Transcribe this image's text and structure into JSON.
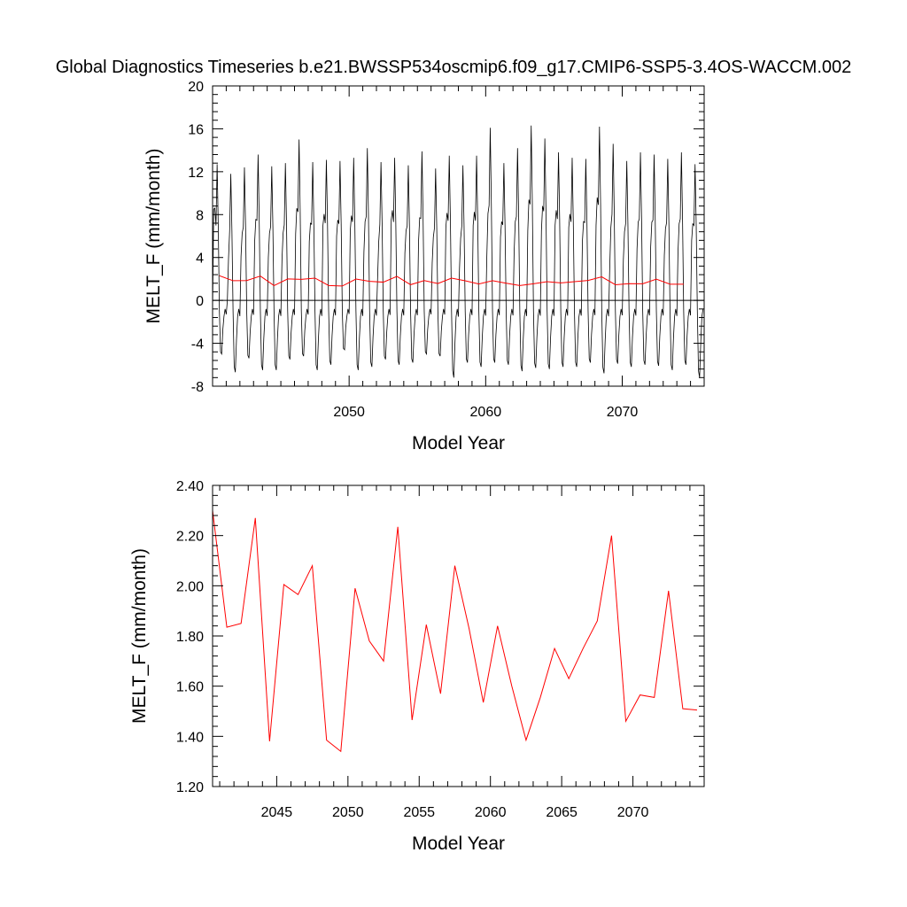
{
  "figure": {
    "title": "Global Diagnostics Timeseries b.e21.BWSSP534oscmip6.f09_g17.CMIP6-SSP5-3.4OS-WACCM.002"
  },
  "colors": {
    "monthly_line": "#000000",
    "annual_line": "#ff0000",
    "zero_line": "#000000",
    "frame": "#000000"
  },
  "chart_data": [
    {
      "type": "line",
      "xlabel": "Model Year",
      "ylabel": "MELT_F (mm/month)",
      "xlim": [
        2040,
        2076
      ],
      "ylim": [
        -8,
        20
      ],
      "xticks": [
        2050,
        2060,
        2070
      ],
      "xtick_labels": [
        "2050",
        "2060",
        "2070"
      ],
      "yticks": [
        -8,
        -4,
        0,
        4,
        8,
        12,
        16,
        20
      ],
      "ytick_labels": [
        "-8",
        "-4",
        "0",
        "4",
        "8",
        "12",
        "16",
        "20"
      ],
      "zero_line": true,
      "grid": false,
      "series": [
        {
          "style": "monthly",
          "color": "#000000",
          "x_start": 2040,
          "step": 0.0833333,
          "peaks": [
            12.7,
            11.8,
            12.4,
            13.6,
            12.5,
            12.8,
            15.0,
            12.9,
            13.1,
            13.0,
            13.3,
            14.2,
            12.9,
            13.3,
            12.6,
            13.9,
            12.3,
            13.5,
            12.6,
            13.5,
            16.1,
            12.8,
            14.2,
            16.3,
            15.1,
            13.8,
            13.3,
            13.2,
            16.2,
            14.6,
            13.0,
            13.8,
            13.6,
            13.2,
            13.8,
            12.7
          ],
          "secondary_peaks": [
            8.5,
            0.0,
            4.1,
            5.5,
            4.0,
            3.8,
            6.2,
            5.5,
            7.0,
            6.0,
            6.5,
            4.5,
            2.0,
            7.5,
            4.4,
            5.5,
            3.5,
            6.8,
            3.0,
            7.0,
            4.1,
            5.9,
            4.5,
            6.5,
            6.5,
            7.0,
            6.8,
            5.5,
            7.0,
            3.0,
            3.8,
            4.8,
            5.0,
            4.2,
            4.5,
            5.6
          ],
          "troughs": [
            -5.0,
            -6.7,
            -5.4,
            -6.5,
            -6.5,
            -5.5,
            -5.2,
            -6.5,
            -6.0,
            -4.6,
            -6.5,
            -6.2,
            -5.5,
            -6.0,
            -5.8,
            -5.0,
            -5.2,
            -7.2,
            -5.8,
            -6.2,
            -5.8,
            -6.0,
            -6.6,
            -6.3,
            -6.4,
            -6.2,
            -6.2,
            -5.8,
            -6.8,
            -5.9,
            -6.2,
            -6.0,
            -6.1,
            -6.5,
            -6.0,
            -7.2
          ]
        },
        {
          "style": "annual",
          "color": "#ff0000",
          "x": [
            2040.5,
            2041.5,
            2042.5,
            2043.5,
            2044.5,
            2045.5,
            2046.5,
            2047.5,
            2048.5,
            2049.5,
            2050.5,
            2051.5,
            2052.5,
            2053.5,
            2054.5,
            2055.5,
            2056.5,
            2057.5,
            2058.5,
            2059.5,
            2060.5,
            2061.5,
            2062.5,
            2063.5,
            2064.5,
            2065.5,
            2066.5,
            2067.5,
            2068.5,
            2069.5,
            2070.5,
            2071.5,
            2072.5,
            2073.5,
            2074.5
          ],
          "values": [
            2.3,
            1.835,
            1.85,
            2.27,
            1.38,
            2.005,
            1.965,
            2.08,
            1.385,
            1.34,
            1.99,
            1.78,
            1.7,
            2.235,
            1.465,
            1.845,
            1.57,
            2.08,
            1.83,
            1.535,
            1.84,
            1.6,
            1.385,
            1.555,
            1.75,
            1.63,
            1.75,
            1.86,
            2.2,
            1.46,
            1.565,
            1.555,
            1.98,
            1.51,
            1.505
          ]
        }
      ]
    },
    {
      "type": "line",
      "xlabel": "Model Year",
      "ylabel": "MELT_F (mm/month)",
      "xlim": [
        2040.5,
        2075
      ],
      "ylim": [
        1.2,
        2.4
      ],
      "xticks": [
        2045,
        2050,
        2055,
        2060,
        2065,
        2070
      ],
      "xtick_labels": [
        "2045",
        "2050",
        "2055",
        "2060",
        "2065",
        "2070"
      ],
      "yticks": [
        1.2,
        1.4,
        1.6,
        1.8,
        2.0,
        2.2,
        2.4
      ],
      "ytick_labels": [
        "1.20",
        "1.40",
        "1.60",
        "1.80",
        "2.00",
        "2.20",
        "2.40"
      ],
      "grid": false,
      "series": [
        {
          "style": "annual",
          "color": "#ff0000",
          "x": [
            2040.5,
            2041.5,
            2042.5,
            2043.5,
            2044.5,
            2045.5,
            2046.5,
            2047.5,
            2048.5,
            2049.5,
            2050.5,
            2051.5,
            2052.5,
            2053.5,
            2054.5,
            2055.5,
            2056.5,
            2057.5,
            2058.5,
            2059.5,
            2060.5,
            2061.5,
            2062.5,
            2063.5,
            2064.5,
            2065.5,
            2066.5,
            2067.5,
            2068.5,
            2069.5,
            2070.5,
            2071.5,
            2072.5,
            2073.5,
            2074.5
          ],
          "values": [
            2.3,
            1.835,
            1.85,
            2.27,
            1.38,
            2.005,
            1.965,
            2.08,
            1.385,
            1.34,
            1.99,
            1.78,
            1.7,
            2.235,
            1.465,
            1.845,
            1.57,
            2.08,
            1.83,
            1.535,
            1.84,
            1.6,
            1.385,
            1.555,
            1.75,
            1.63,
            1.75,
            1.86,
            2.2,
            1.46,
            1.565,
            1.555,
            1.98,
            1.51,
            1.505
          ]
        }
      ]
    }
  ]
}
